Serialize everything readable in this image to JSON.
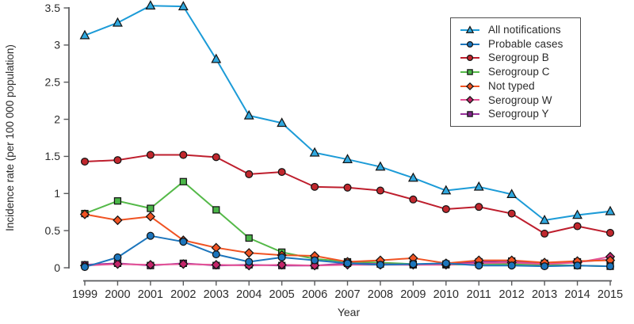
{
  "chart_data": {
    "type": "line",
    "title": "",
    "xlabel": "Year",
    "ylabel": "Incidence rate (per 100 000 population)",
    "x": [
      1999,
      2000,
      2001,
      2002,
      2003,
      2004,
      2005,
      2006,
      2007,
      2008,
      2009,
      2010,
      2011,
      2012,
      2013,
      2014,
      2015
    ],
    "x_tick_labels": [
      "1999",
      "2000",
      "2001",
      "2002",
      "2003",
      "2004",
      "2005",
      "2006",
      "2007",
      "2008",
      "2009",
      "2010",
      "2011",
      "2012",
      "2013",
      "2014",
      "2015"
    ],
    "y_ticks": [
      0,
      0.5,
      1,
      1.5,
      2,
      2.5,
      3,
      3.5
    ],
    "y_tick_labels": [
      "0",
      "0.5",
      "1",
      "1.5",
      "2",
      "2.5",
      "3",
      "3.5"
    ],
    "ylim": [
      0,
      3.5
    ],
    "grid": false,
    "legend_position": "top-right",
    "series": [
      {
        "id": "all-notifications",
        "name": "All notifications",
        "marker": "triangle",
        "color": "#1C9BD7",
        "marker_fill": "#2FA8DF",
        "values": [
          3.13,
          3.3,
          3.53,
          3.52,
          2.81,
          2.05,
          1.95,
          1.55,
          1.46,
          1.36,
          1.21,
          1.04,
          1.09,
          0.99,
          0.64,
          0.71,
          0.76
        ]
      },
      {
        "id": "probable-cases",
        "name": "Probable cases",
        "marker": "circle",
        "color": "#1C75BC",
        "marker_fill": "#1C75BC",
        "values": [
          0.01,
          0.14,
          0.43,
          0.35,
          0.18,
          0.08,
          0.14,
          0.1,
          0.06,
          0.04,
          0.05,
          0.06,
          0.03,
          0.03,
          0.02,
          0.03,
          0.02
        ]
      },
      {
        "id": "serogroup-b",
        "name": "Serogroup B",
        "marker": "circle",
        "color": "#BE1E2D",
        "marker_fill": "#C1272D",
        "values": [
          1.43,
          1.45,
          1.52,
          1.52,
          1.49,
          1.26,
          1.29,
          1.09,
          1.08,
          1.04,
          0.92,
          0.79,
          0.82,
          0.73,
          0.46,
          0.56,
          0.47
        ]
      },
      {
        "id": "serogroup-c",
        "name": "Serogroup C",
        "marker": "square",
        "color": "#54B948",
        "marker_fill": "#4AB648",
        "values": [
          0.73,
          0.9,
          0.8,
          1.16,
          0.78,
          0.4,
          0.21,
          0.12,
          0.08,
          0.07,
          0.05,
          0.04,
          0.05,
          0.05,
          0.04,
          0.03,
          0.02
        ]
      },
      {
        "id": "not-typed",
        "name": "Not typed",
        "marker": "diamond",
        "color": "#F05323",
        "marker_fill": "#F05323",
        "values": [
          0.72,
          0.64,
          0.69,
          0.37,
          0.27,
          0.2,
          0.17,
          0.16,
          0.08,
          0.1,
          0.13,
          0.06,
          0.1,
          0.1,
          0.07,
          0.09,
          0.1
        ]
      },
      {
        "id": "serogroup-w",
        "name": "Serogroup W",
        "marker": "diamond",
        "color": "#E45397",
        "marker_fill": "#C4256A",
        "values": [
          0.03,
          0.05,
          0.04,
          0.05,
          0.04,
          0.03,
          0.04,
          0.03,
          0.04,
          0.04,
          0.04,
          0.04,
          0.06,
          0.07,
          0.05,
          0.07,
          0.15
        ]
      },
      {
        "id": "serogroup-y",
        "name": "Serogroup Y",
        "marker": "square",
        "color": "#96309A",
        "marker_fill": "#83268C",
        "values": [
          0.04,
          0.06,
          0.03,
          0.06,
          0.03,
          0.04,
          0.03,
          0.03,
          0.06,
          0.05,
          0.04,
          0.05,
          0.08,
          0.09,
          0.06,
          0.08,
          0.11
        ]
      }
    ]
  },
  "colors": {
    "axis": "#58595B",
    "text": "#2B2B2B",
    "background": "#FFFFFF",
    "legend_border": "#4D4D4D"
  }
}
